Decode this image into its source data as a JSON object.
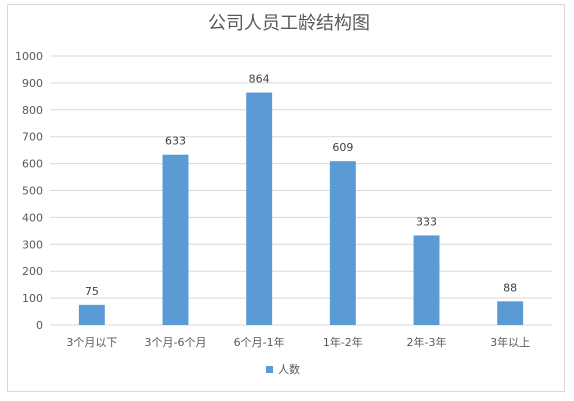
{
  "chart_data": {
    "type": "bar",
    "title": "公司人员工龄结构图",
    "categories": [
      "3个月以下",
      "3个月-6个月",
      "6个月-1年",
      "1年-2年",
      "2年-3年",
      "3年以上"
    ],
    "series": [
      {
        "name": "人数",
        "values": [
          75,
          633,
          864,
          609,
          333,
          88
        ]
      }
    ],
    "y_ticks": [
      "0",
      "100",
      "200",
      "300",
      "400",
      "500",
      "600",
      "700",
      "800",
      "900",
      "1000"
    ],
    "ylim": [
      0,
      1000
    ],
    "grid": true,
    "legend": "bottom",
    "bar_color": "#5b9bd5",
    "grid_color": "#d9d9d9"
  }
}
